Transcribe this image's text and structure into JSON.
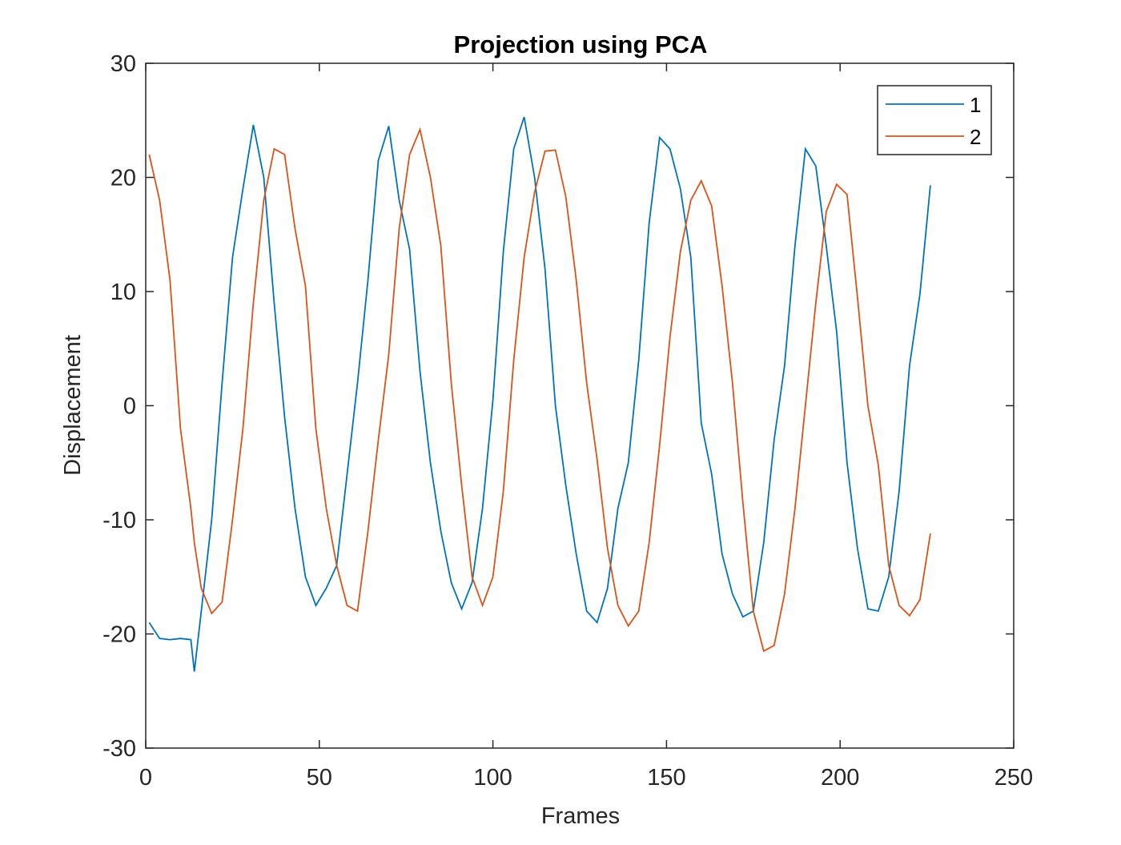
{
  "chart_data": {
    "type": "line",
    "title": "Projection using PCA",
    "x_label": "Frames",
    "y_label": "Displacement",
    "x": [
      1,
      4,
      7,
      10,
      13,
      14,
      16,
      19,
      22,
      25,
      28,
      31,
      34,
      37,
      40,
      43,
      46,
      49,
      52,
      55,
      58,
      61,
      64,
      67,
      70,
      73,
      76,
      79,
      82,
      85,
      88,
      91,
      94,
      97,
      100,
      103,
      106,
      109,
      112,
      115,
      118,
      121,
      124,
      127,
      130,
      133,
      136,
      139,
      142,
      145,
      148,
      151,
      154,
      157,
      160,
      163,
      166,
      169,
      172,
      175,
      178,
      181,
      184,
      187,
      190,
      193,
      196,
      199,
      202,
      205,
      208,
      211,
      214,
      217,
      220,
      223,
      226
    ],
    "series": [
      {
        "name": "1",
        "color": "#0072BD",
        "values": [
          -19,
          -20.4,
          -20.5,
          -20.4,
          -20.5,
          -23.3,
          -18,
          -10,
          2,
          13,
          19,
          24.6,
          20,
          9,
          -1,
          -9,
          -15,
          -17.5,
          -16,
          -14,
          -6,
          2,
          11,
          21.5,
          24.5,
          18,
          13.7,
          3,
          -5,
          -11,
          -15.5,
          -17.8,
          -15.5,
          -9,
          0.5,
          13.5,
          22.5,
          25.3,
          20,
          12,
          0,
          -7,
          -13,
          -18,
          -19,
          -16,
          -9,
          -5,
          4,
          16,
          23.5,
          22.5,
          19,
          13,
          -1.5,
          -6,
          -13,
          -16.5,
          -18.5,
          -18,
          -12,
          -3,
          3.5,
          14,
          22.5,
          21,
          14,
          6.5,
          -5,
          -12.5,
          -17.8,
          -18,
          -15,
          -7.5,
          3.5,
          9.8,
          19.3
        ]
      },
      {
        "name": "2",
        "color": "#D95319",
        "values": [
          22,
          18,
          11,
          -2,
          -9,
          -12,
          -16,
          -18.2,
          -17.2,
          -10,
          -2,
          9,
          18,
          22.5,
          22,
          15.5,
          10.5,
          -2,
          -9,
          -14,
          -17.5,
          -18,
          -11,
          -3,
          4.5,
          15.5,
          22,
          24.2,
          20,
          14,
          2,
          -7,
          -15,
          -17.5,
          -15,
          -7.5,
          4,
          13,
          18.7,
          22.3,
          22.4,
          18.3,
          11,
          2,
          -4.7,
          -12.5,
          -17.5,
          -19.3,
          -18,
          -12,
          -3.5,
          6,
          13.5,
          18,
          19.7,
          17.5,
          10.5,
          2,
          -8.5,
          -18,
          -21.5,
          -21,
          -16.5,
          -9,
          0,
          9,
          17,
          19.4,
          18.5,
          9.5,
          0,
          -5.2,
          -14,
          -17.5,
          -18.4,
          -17,
          -11.2
        ]
      }
    ],
    "xlim": [
      0,
      250
    ],
    "xticks": [
      0,
      50,
      100,
      150,
      200,
      250
    ],
    "ylim": [
      -30,
      30
    ],
    "yticks": [
      -30,
      -20,
      -10,
      0,
      10,
      20,
      30
    ],
    "legend": "northeast"
  }
}
